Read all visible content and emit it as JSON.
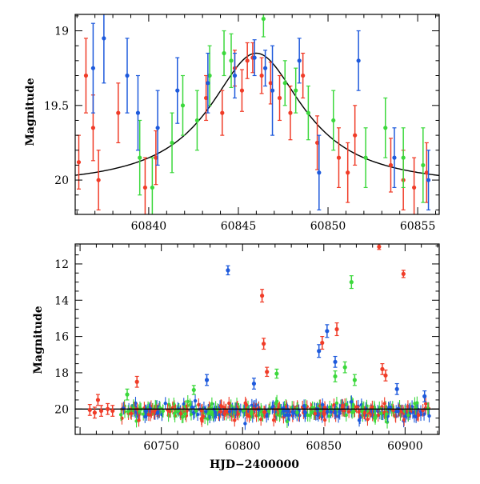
{
  "chart_data": [
    {
      "type": "scatter",
      "panel": "top",
      "title": "",
      "xlabel": "",
      "ylabel": "Magnitude",
      "xlim": [
        60835.9,
        60856.2
      ],
      "ylim": [
        20.23,
        18.89
      ],
      "y_inverted": true,
      "x_ticks": [
        60840,
        60845,
        60850,
        60855
      ],
      "x_tick_labels": [
        "60840",
        "60845",
        "60850",
        "60855"
      ],
      "y_ticks": [
        19,
        19.5,
        20
      ],
      "y_tick_labels": [
        "19",
        "19.5",
        "20"
      ],
      "colors": {
        "g": "#3cd83c",
        "c": "#1e5adc",
        "o": "#f03c28",
        "model": "#000000"
      },
      "model_curve": {
        "type": "microlensing-like peak",
        "baseline_mag": 20.05,
        "peak_time": 60846.0,
        "peak_mag": 19.15,
        "width_days": 3.2
      },
      "series": [
        {
          "color_key": "o",
          "points": [
            {
              "x": 60836.1,
              "y": 19.88,
              "err": 0.18
            },
            {
              "x": 60836.5,
              "y": 19.3,
              "err": 0.25
            },
            {
              "x": 60836.9,
              "y": 19.65,
              "err": 0.22
            },
            {
              "x": 60837.2,
              "y": 20.0,
              "err": 0.2
            },
            {
              "x": 60838.3,
              "y": 19.55,
              "err": 0.2
            },
            {
              "x": 60839.8,
              "y": 20.05,
              "err": 0.2
            },
            {
              "x": 60840.4,
              "y": 19.85,
              "err": 0.18
            },
            {
              "x": 60843.2,
              "y": 19.45,
              "err": 0.15
            },
            {
              "x": 60844.1,
              "y": 19.55,
              "err": 0.15
            },
            {
              "x": 60844.8,
              "y": 19.25,
              "err": 0.12
            },
            {
              "x": 60845.2,
              "y": 19.4,
              "err": 0.14
            },
            {
              "x": 60845.5,
              "y": 19.2,
              "err": 0.12
            },
            {
              "x": 60845.8,
              "y": 19.18,
              "err": 0.1
            },
            {
              "x": 60846.3,
              "y": 19.3,
              "err": 0.12
            },
            {
              "x": 60846.8,
              "y": 19.35,
              "err": 0.14
            },
            {
              "x": 60847.3,
              "y": 19.45,
              "err": 0.15
            },
            {
              "x": 60847.9,
              "y": 19.55,
              "err": 0.18
            },
            {
              "x": 60848.6,
              "y": 19.3,
              "err": 0.15
            },
            {
              "x": 60849.4,
              "y": 19.75,
              "err": 0.18
            },
            {
              "x": 60850.6,
              "y": 19.85,
              "err": 0.2
            },
            {
              "x": 60851.1,
              "y": 19.95,
              "err": 0.2
            },
            {
              "x": 60851.5,
              "y": 19.7,
              "err": 0.2
            },
            {
              "x": 60853.5,
              "y": 19.9,
              "err": 0.18
            },
            {
              "x": 60854.2,
              "y": 20.0,
              "err": 0.2
            },
            {
              "x": 60854.8,
              "y": 20.05,
              "err": 0.2
            },
            {
              "x": 60855.5,
              "y": 19.95,
              "err": 0.2
            }
          ]
        },
        {
          "color_key": "g",
          "points": [
            {
              "x": 60839.5,
              "y": 19.85,
              "err": 0.25
            },
            {
              "x": 60840.2,
              "y": 20.05,
              "err": 0.2
            },
            {
              "x": 60841.3,
              "y": 19.75,
              "err": 0.2
            },
            {
              "x": 60841.9,
              "y": 19.5,
              "err": 0.2
            },
            {
              "x": 60842.7,
              "y": 19.6,
              "err": 0.2
            },
            {
              "x": 60843.4,
              "y": 19.3,
              "err": 0.2
            },
            {
              "x": 60844.2,
              "y": 19.15,
              "err": 0.15
            },
            {
              "x": 60844.6,
              "y": 19.2,
              "err": 0.18
            },
            {
              "x": 60846.4,
              "y": 18.92,
              "err": 0.12
            },
            {
              "x": 60847.6,
              "y": 19.35,
              "err": 0.15
            },
            {
              "x": 60848.2,
              "y": 19.4,
              "err": 0.15
            },
            {
              "x": 60848.9,
              "y": 19.55,
              "err": 0.18
            },
            {
              "x": 60850.3,
              "y": 19.6,
              "err": 0.2
            },
            {
              "x": 60852.1,
              "y": 19.85,
              "err": 0.2
            },
            {
              "x": 60853.2,
              "y": 19.65,
              "err": 0.2
            },
            {
              "x": 60854.2,
              "y": 19.85,
              "err": 0.2
            },
            {
              "x": 60855.3,
              "y": 19.9,
              "err": 0.25
            }
          ]
        },
        {
          "color_key": "c",
          "points": [
            {
              "x": 60836.9,
              "y": 19.25,
              "err": 0.3
            },
            {
              "x": 60837.5,
              "y": 19.05,
              "err": 0.3
            },
            {
              "x": 60838.8,
              "y": 19.3,
              "err": 0.25
            },
            {
              "x": 60839.4,
              "y": 19.55,
              "err": 0.25
            },
            {
              "x": 60840.5,
              "y": 19.65,
              "err": 0.25
            },
            {
              "x": 60841.6,
              "y": 19.4,
              "err": 0.22
            },
            {
              "x": 60843.3,
              "y": 19.35,
              "err": 0.2
            },
            {
              "x": 60844.8,
              "y": 19.3,
              "err": 0.15
            },
            {
              "x": 60845.9,
              "y": 19.18,
              "err": 0.12
            },
            {
              "x": 60846.5,
              "y": 19.25,
              "err": 0.12
            },
            {
              "x": 60846.9,
              "y": 19.4,
              "err": 0.3
            },
            {
              "x": 60848.4,
              "y": 19.2,
              "err": 0.15
            },
            {
              "x": 60849.5,
              "y": 19.95,
              "err": 0.25
            },
            {
              "x": 60851.7,
              "y": 19.2,
              "err": 0.2
            },
            {
              "x": 60853.7,
              "y": 19.85,
              "err": 0.2
            },
            {
              "x": 60855.6,
              "y": 20.0,
              "err": 0.2
            }
          ]
        }
      ]
    },
    {
      "type": "scatter",
      "panel": "bottom",
      "title": "",
      "xlabel": "HJD−2400000",
      "ylabel": "Magnitude",
      "xlim": [
        60697,
        60921
      ],
      "ylim": [
        21.4,
        10.9
      ],
      "y_inverted": true,
      "x_ticks": [
        60750,
        60800,
        60850,
        60900
      ],
      "x_tick_labels": [
        "60750",
        "60800",
        "60850",
        "60900"
      ],
      "y_ticks": [
        12,
        14,
        16,
        18,
        20
      ],
      "y_tick_labels": [
        "12",
        "14",
        "16",
        "18",
        "20"
      ],
      "baseline_mag": 20.0,
      "dense_baseline": {
        "x_start": 60725,
        "x_end": 60915,
        "mag": 20.1,
        "scatter": 0.35
      },
      "series": [
        {
          "color_key": "o",
          "points": [
            {
              "x": 60706,
              "y": 20.05,
              "err": 0.3
            },
            {
              "x": 60709,
              "y": 20.2,
              "err": 0.3
            },
            {
              "x": 60711,
              "y": 19.5,
              "err": 0.3
            },
            {
              "x": 60713,
              "y": 20.1,
              "err": 0.3
            },
            {
              "x": 60717,
              "y": 20.0,
              "err": 0.3
            },
            {
              "x": 60720,
              "y": 20.1,
              "err": 0.3
            },
            {
              "x": 60735,
              "y": 18.5,
              "err": 0.3
            },
            {
              "x": 60812,
              "y": 13.75,
              "err": 0.35
            },
            {
              "x": 60813,
              "y": 16.4,
              "err": 0.3
            },
            {
              "x": 60815,
              "y": 17.95,
              "err": 0.25
            },
            {
              "x": 60849,
              "y": 16.35,
              "err": 0.35
            },
            {
              "x": 60858,
              "y": 15.6,
              "err": 0.35
            },
            {
              "x": 60884,
              "y": 11.05,
              "err": 0.15
            },
            {
              "x": 60886,
              "y": 17.8,
              "err": 0.3
            },
            {
              "x": 60888,
              "y": 18.15,
              "err": 0.3
            },
            {
              "x": 60899,
              "y": 12.55,
              "err": 0.2
            }
          ]
        },
        {
          "color_key": "g",
          "points": [
            {
              "x": 60729,
              "y": 19.2,
              "err": 0.3
            },
            {
              "x": 60770,
              "y": 18.95,
              "err": 0.25
            },
            {
              "x": 60821,
              "y": 18.05,
              "err": 0.25
            },
            {
              "x": 60857,
              "y": 18.2,
              "err": 0.3
            },
            {
              "x": 60863,
              "y": 17.7,
              "err": 0.3
            },
            {
              "x": 60867,
              "y": 13.0,
              "err": 0.35
            },
            {
              "x": 60869,
              "y": 18.4,
              "err": 0.3
            }
          ]
        },
        {
          "color_key": "c",
          "points": [
            {
              "x": 60778,
              "y": 18.4,
              "err": 0.3
            },
            {
              "x": 60791,
              "y": 12.35,
              "err": 0.25
            },
            {
              "x": 60807,
              "y": 18.6,
              "err": 0.3
            },
            {
              "x": 60847,
              "y": 16.8,
              "err": 0.35
            },
            {
              "x": 60852,
              "y": 15.7,
              "err": 0.35
            },
            {
              "x": 60857,
              "y": 17.4,
              "err": 0.3
            },
            {
              "x": 60895,
              "y": 18.9,
              "err": 0.3
            },
            {
              "x": 60912,
              "y": 19.3,
              "err": 0.3
            }
          ]
        }
      ]
    }
  ]
}
